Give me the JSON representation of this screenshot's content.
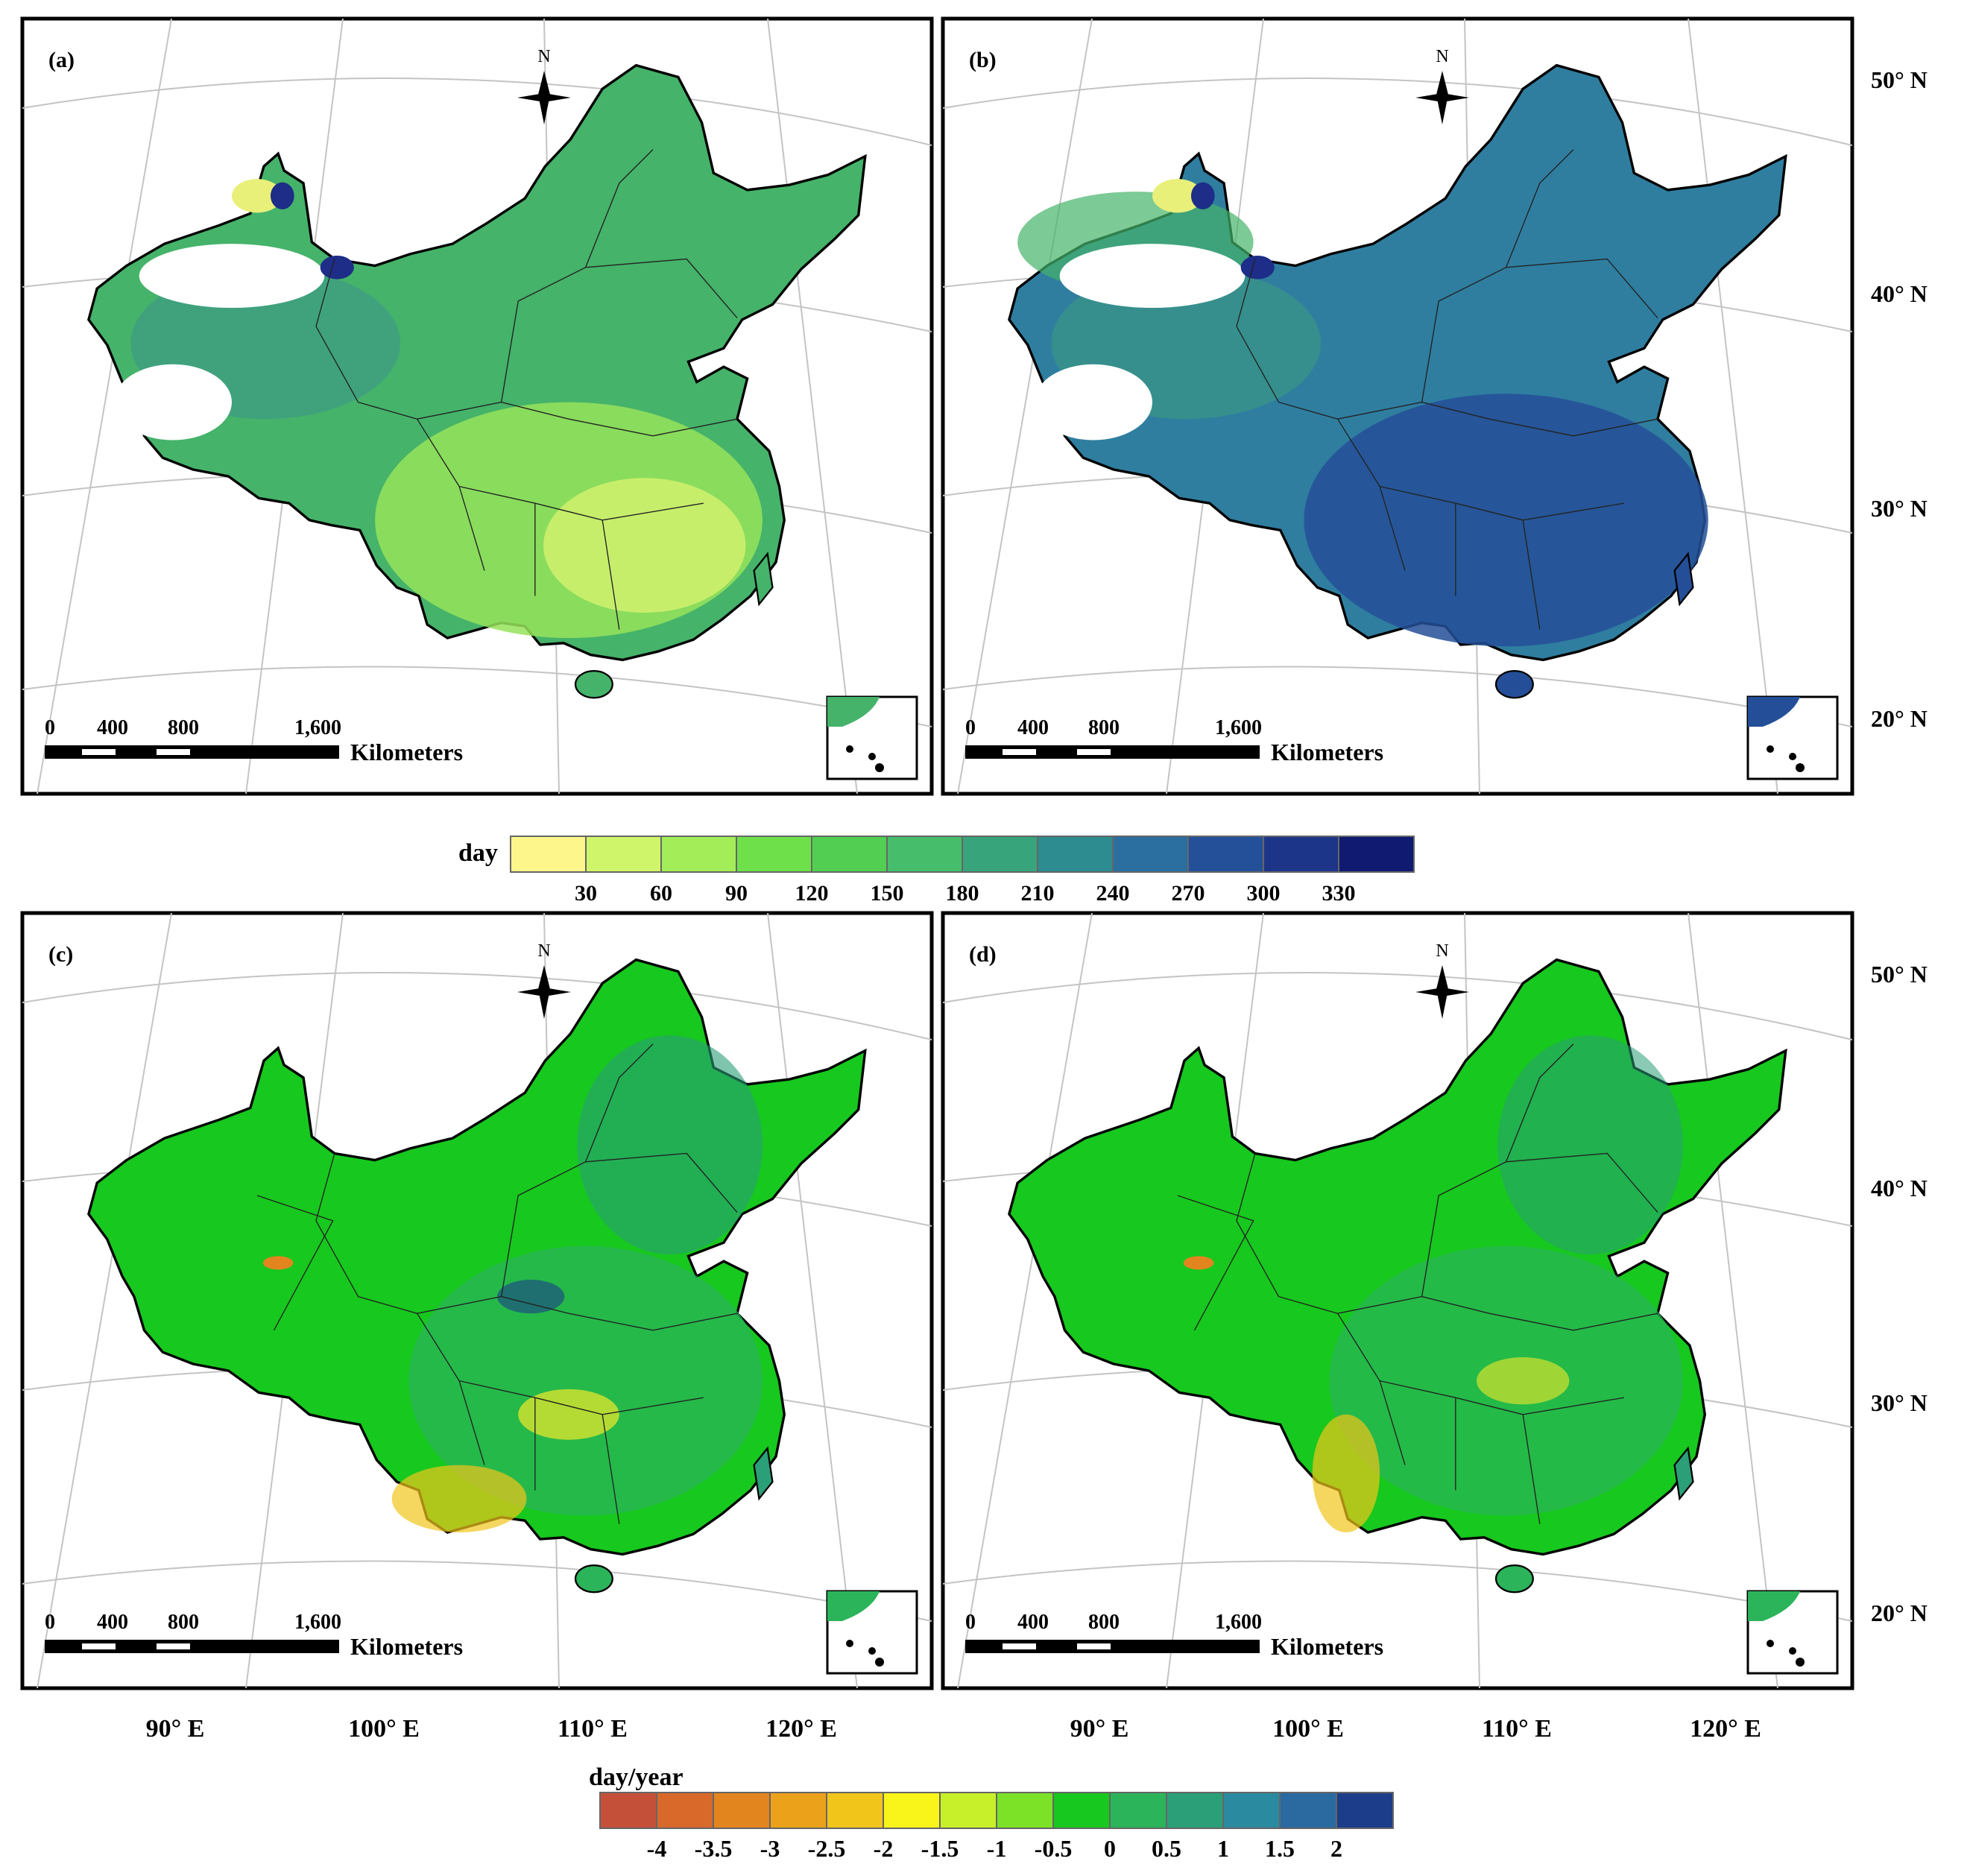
{
  "panels": [
    {
      "label": "(a)",
      "palette": "seasonal_a"
    },
    {
      "label": "(b)",
      "palette": "seasonal_b"
    },
    {
      "label": "(c)",
      "palette": "trend_c"
    },
    {
      "label": "(d)",
      "palette": "trend_d"
    }
  ],
  "north_label": "N",
  "scale_bar": {
    "ticks": [
      "0",
      "400",
      "800",
      "1,600"
    ],
    "unit": "Kilometers"
  },
  "lat_labels": [
    "50° N",
    "40° N",
    "30° N",
    "20° N"
  ],
  "lon_labels": [
    "90° E",
    "100° E",
    "110° E",
    "120° E"
  ],
  "legend_top": {
    "title": "day",
    "ticks": [
      "30",
      "60",
      "90",
      "120",
      "150",
      "180",
      "210",
      "240",
      "270",
      "300",
      "330"
    ],
    "colors": [
      "#fdf68a",
      "#cff56a",
      "#a3ee58",
      "#6ee04a",
      "#52cf52",
      "#45bd6a",
      "#37a47c",
      "#2d8c90",
      "#2a6fa0",
      "#24509a",
      "#1d3588",
      "#0f1a70"
    ]
  },
  "legend_bottom": {
    "title": "day/year",
    "ticks": [
      "-4",
      "-3.5",
      "-3",
      "-2.5",
      "-2",
      "-1.5",
      "-1",
      "-0.5",
      "0",
      "0.5",
      "1",
      "1.5",
      "2"
    ],
    "colors": [
      "#c5503a",
      "#d8692a",
      "#e2851f",
      "#eba21a",
      "#f1c51a",
      "#f9f41a",
      "#c8f02a",
      "#7be228",
      "#17c81e",
      "#2bb45a",
      "#2a9f78",
      "#2a8aa0",
      "#2a6aa0",
      "#1c3d8a"
    ]
  },
  "colors": {
    "frame": "#000000",
    "graticule": "#bdbdbd",
    "province_line": "#222222",
    "empty_region": "#ffffff"
  }
}
